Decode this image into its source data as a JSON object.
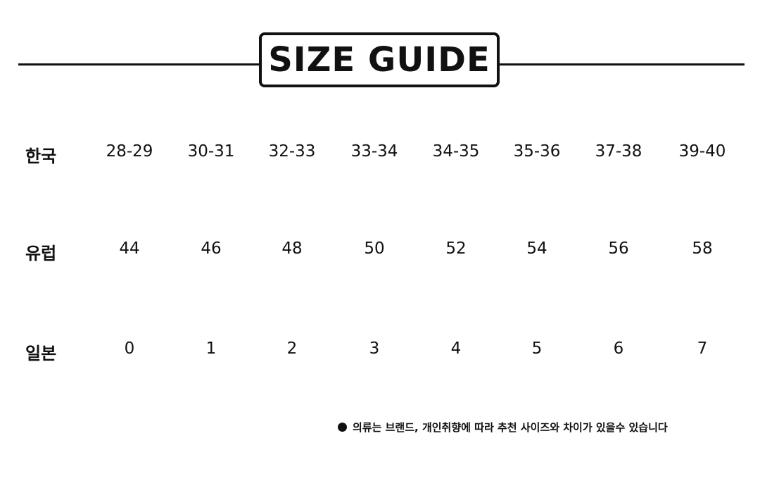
{
  "title": "SIZE GUIDE",
  "rows": [
    {
      "label": "한국",
      "values": [
        "28-29",
        "30-31",
        "32-33",
        "33-34",
        "34-35",
        "35-36",
        "37-38",
        "39-40"
      ]
    },
    {
      "label": "유럽",
      "values": [
        "44",
        "46",
        "48",
        "50",
        "52",
        "54",
        "56",
        "58"
      ]
    },
    {
      "label": "일본",
      "values": [
        "0",
        "1",
        "2",
        "3",
        "4",
        "5",
        "6",
        "7"
      ]
    }
  ],
  "note": "의류는 브랜드, 개인취향에 따라 추천 사이즈와 차이가 있을수 있습니다"
}
